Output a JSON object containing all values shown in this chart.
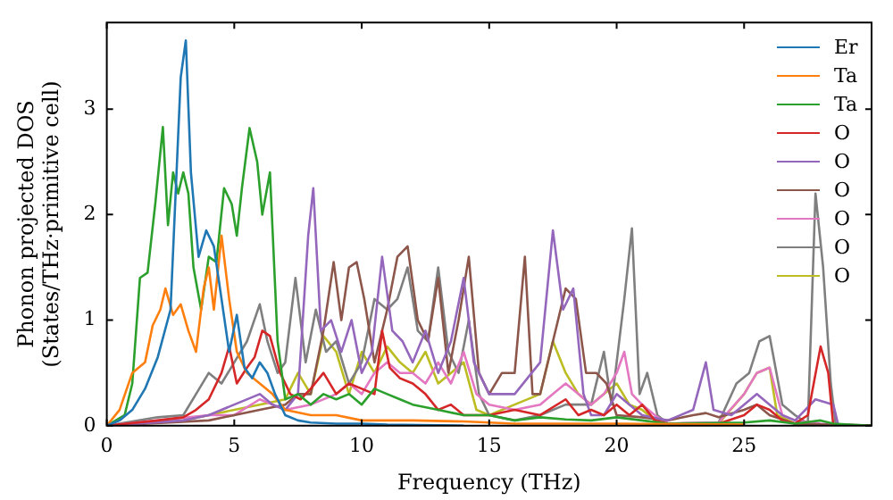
{
  "chart_data": {
    "type": "line",
    "xlabel": "Frequency (THz)",
    "ylabel": "Phonon projected DOS\n(States/THz·primitive cell)",
    "xlim": [
      0,
      30
    ],
    "ylim": [
      0,
      3.82
    ],
    "xticks": [
      0,
      5,
      10,
      15,
      20,
      25
    ],
    "yticks": [
      0,
      1,
      2,
      3
    ],
    "grid": false,
    "legend": "top right",
    "marker": "none",
    "line_style": "solid",
    "series": [
      {
        "name": "Er",
        "color": "#1f77b4",
        "x": [
          0,
          0.5,
          1,
          1.5,
          2,
          2.5,
          2.7,
          2.9,
          3.1,
          3.3,
          3.6,
          3.9,
          4.2,
          4.5,
          4.8,
          5.1,
          5.4,
          5.7,
          6.0,
          6.3,
          6.6,
          7,
          7.5,
          8,
          9,
          10,
          11,
          14
        ],
        "values": [
          0,
          0.05,
          0.15,
          0.35,
          0.65,
          1.1,
          2.2,
          3.3,
          3.65,
          2.4,
          1.6,
          1.85,
          1.7,
          1.2,
          0.7,
          1.05,
          0.55,
          0.45,
          0.6,
          0.5,
          0.3,
          0.1,
          0.05,
          0.03,
          0.02,
          0.02,
          0.01,
          0
        ]
      },
      {
        "name": "Ta",
        "color": "#ff7f0e",
        "x": [
          0,
          0.5,
          1,
          1.5,
          1.8,
          2.1,
          2.3,
          2.6,
          2.9,
          3.2,
          3.5,
          3.8,
          4.0,
          4.2,
          4.5,
          4.8,
          5.1,
          5.5,
          6,
          6.5,
          7,
          8,
          9,
          10,
          11,
          12,
          14,
          16,
          20,
          25
        ],
        "values": [
          0,
          0.15,
          0.5,
          0.6,
          0.95,
          1.1,
          1.3,
          1.05,
          1.15,
          0.9,
          0.7,
          1.3,
          1.5,
          1.1,
          1.8,
          1.2,
          0.7,
          0.5,
          0.4,
          0.3,
          0.15,
          0.1,
          0.1,
          0.05,
          0.05,
          0.05,
          0.04,
          0.02,
          0.02,
          0.01
        ]
      },
      {
        "name": "Ta",
        "color": "#2ca02c",
        "x": [
          0,
          0.7,
          1,
          1.3,
          1.6,
          1.9,
          2.2,
          2.4,
          2.6,
          2.8,
          3.0,
          3.2,
          3.4,
          3.7,
          4.0,
          4.3,
          4.6,
          4.9,
          5.1,
          5.3,
          5.6,
          5.9,
          6.1,
          6.4,
          6.7,
          7,
          7.5,
          8,
          8.5,
          9,
          9.5,
          10,
          10.5,
          11,
          11.5,
          12,
          13,
          14,
          15,
          16,
          17,
          18,
          19,
          20,
          21,
          22,
          25,
          26,
          27,
          28,
          28.5,
          30
        ],
        "values": [
          0,
          0.1,
          0.4,
          1.4,
          1.45,
          2.1,
          2.83,
          1.9,
          2.4,
          2.2,
          2.4,
          2.2,
          1.5,
          1.1,
          1.6,
          1.55,
          2.25,
          2.1,
          1.8,
          2.25,
          2.82,
          2.5,
          2.0,
          2.4,
          0.8,
          0.25,
          0.3,
          0.2,
          0.3,
          0.25,
          0.3,
          0.2,
          0.35,
          0.3,
          0.25,
          0.2,
          0.15,
          0.1,
          0.1,
          0.05,
          0.08,
          0.06,
          0.05,
          0.08,
          0.05,
          0.02,
          0.03,
          0.05,
          0.02,
          0.05,
          0.02,
          0
        ]
      },
      {
        "name": "O",
        "color": "#d62728",
        "x": [
          0,
          2,
          3,
          3.5,
          4,
          4.5,
          4.8,
          5.1,
          5.5,
          5.8,
          6.1,
          6.4,
          6.8,
          7.2,
          7.6,
          8,
          8.5,
          9,
          9.5,
          10,
          10.5,
          10.8,
          11.1,
          11.5,
          12,
          12.5,
          13,
          13.5,
          14,
          15,
          16,
          17,
          18,
          18.5,
          19,
          19.5,
          20,
          20.5,
          21,
          21.5,
          22,
          24,
          25,
          25.5,
          26,
          26.5,
          27,
          27.5,
          28,
          28.3,
          28.5,
          30
        ],
        "values": [
          0,
          0.05,
          0.08,
          0.15,
          0.25,
          0.5,
          0.75,
          0.4,
          0.55,
          0.65,
          0.9,
          0.85,
          0.5,
          0.3,
          0.25,
          0.35,
          0.5,
          0.3,
          0.4,
          0.35,
          0.3,
          0.9,
          0.55,
          0.45,
          0.4,
          0.3,
          0.15,
          0.2,
          0.1,
          0.1,
          0.15,
          0.1,
          0.25,
          0.1,
          0.15,
          0.1,
          0.2,
          0.1,
          0.2,
          0.05,
          0.02,
          0.02,
          0.1,
          0.2,
          0.15,
          0.05,
          0.02,
          0.1,
          0.75,
          0.5,
          0,
          0
        ]
      },
      {
        "name": "O",
        "color": "#9467bd",
        "x": [
          0,
          3,
          4,
          5,
          6,
          6.5,
          7,
          7.5,
          7.9,
          8.1,
          8.4,
          8.8,
          9.2,
          9.6,
          10,
          10.4,
          10.8,
          11.2,
          11.6,
          12,
          12.5,
          13,
          13.5,
          14,
          14.4,
          15,
          16,
          17,
          17.5,
          17.9,
          18.3,
          18.7,
          19,
          19.5,
          20,
          20.5,
          21,
          22,
          23,
          23.5,
          23.8,
          24.5,
          25,
          25.5,
          26,
          26.5,
          27,
          27.8,
          28.5,
          28.7,
          30
        ],
        "values": [
          0,
          0.05,
          0.1,
          0.2,
          0.3,
          0.2,
          0.15,
          0.3,
          1.8,
          2.25,
          0.9,
          1.0,
          0.7,
          1.0,
          0.5,
          0.7,
          1.6,
          0.9,
          0.8,
          0.6,
          0.9,
          0.5,
          0.8,
          1.4,
          0.6,
          0.3,
          0.3,
          0.6,
          1.85,
          1.1,
          1.3,
          0.3,
          0.1,
          0.1,
          0.3,
          0.2,
          0.1,
          0.05,
          0.15,
          0.6,
          0.15,
          0.1,
          0.2,
          0.3,
          0.2,
          0.1,
          0.05,
          0.25,
          0.2,
          0,
          0
        ]
      },
      {
        "name": "O",
        "color": "#8c564b",
        "x": [
          0,
          4,
          5,
          6,
          7,
          7.5,
          8,
          8.5,
          8.9,
          9.2,
          9.5,
          9.8,
          10.1,
          10.5,
          11,
          11.4,
          11.8,
          12.2,
          12.6,
          13,
          13.4,
          13.8,
          14.2,
          14.6,
          15,
          15.5,
          16,
          16.4,
          16.7,
          17,
          17.5,
          18,
          18.4,
          18.8,
          19.2,
          19.6,
          20,
          21,
          22,
          23,
          23.5,
          24,
          25,
          25.5,
          26,
          27,
          30
        ],
        "values": [
          0,
          0.05,
          0.1,
          0.15,
          0.2,
          0.3,
          0.3,
          0.9,
          1.55,
          1.0,
          1.5,
          1.55,
          1.2,
          0.6,
          1.1,
          1.6,
          1.7,
          1.0,
          0.8,
          1.4,
          0.5,
          1.0,
          1.6,
          0.5,
          0.3,
          0.5,
          0.5,
          1.6,
          0.3,
          0.3,
          0.8,
          1.3,
          1.2,
          0.5,
          0.5,
          0.4,
          0.1,
          0.08,
          0.05,
          0.1,
          0.12,
          0.08,
          0.15,
          0.2,
          0.1,
          0.02,
          0
        ]
      },
      {
        "name": "O",
        "color": "#e377c2",
        "x": [
          0,
          2,
          4,
          5,
          6,
          7,
          8,
          9,
          9.5,
          10,
          10.5,
          11,
          11.5,
          12,
          12.5,
          13,
          13.5,
          14,
          14.5,
          15,
          16,
          17,
          17.5,
          18,
          18.5,
          19,
          19.5,
          20,
          20.3,
          20.6,
          21,
          21.5,
          22,
          24,
          25,
          25.5,
          26,
          26.5,
          27,
          28,
          30
        ],
        "values": [
          0,
          0.05,
          0.1,
          0.1,
          0.25,
          0.15,
          0.2,
          0.3,
          0.4,
          0.3,
          0.5,
          0.6,
          0.5,
          0.5,
          0.4,
          0.6,
          0.4,
          0.7,
          0.3,
          0.2,
          0.15,
          0.2,
          0.3,
          0.4,
          0.3,
          0.2,
          0.3,
          0.5,
          0.7,
          0.3,
          0.2,
          0.1,
          0.02,
          0.03,
          0.3,
          0.5,
          0.55,
          0.1,
          0.05,
          0.02,
          0
        ]
      },
      {
        "name": "O",
        "color": "#7f7f7f",
        "x": [
          0,
          2,
          3,
          3.5,
          4,
          4.5,
          5,
          5.5,
          6,
          6.3,
          6.7,
          7,
          7.4,
          7.8,
          8.2,
          8.6,
          9,
          9.5,
          10,
          10.5,
          11,
          11.4,
          11.8,
          12.2,
          12.6,
          13,
          13.4,
          13.8,
          14.2,
          14.6,
          15,
          16,
          17,
          18,
          19,
          19.5,
          19.8,
          20.3,
          20.6,
          20.9,
          21.2,
          21.6,
          22,
          24,
          24.7,
          25.2,
          25.6,
          26,
          26.5,
          27,
          27.5,
          27.8,
          28.1,
          28.4,
          28.6,
          30
        ],
        "values": [
          0,
          0.08,
          0.1,
          0.3,
          0.5,
          0.4,
          0.6,
          0.8,
          1.15,
          0.8,
          0.5,
          0.6,
          1.4,
          0.6,
          1.1,
          0.7,
          0.8,
          0.4,
          0.6,
          1.2,
          1.1,
          1.2,
          1.5,
          0.9,
          0.8,
          1.5,
          0.7,
          0.5,
          1.0,
          0.3,
          0.1,
          0.05,
          0.1,
          0.2,
          0.2,
          0.7,
          0.2,
          1.2,
          1.87,
          0.3,
          0.5,
          0.1,
          0.02,
          0.03,
          0.4,
          0.5,
          0.8,
          0.85,
          0.2,
          0.1,
          0.02,
          2.2,
          1.5,
          0.4,
          0,
          0
        ]
      },
      {
        "name": "O",
        "color": "#bcbd22",
        "x": [
          0,
          3,
          4,
          5,
          6,
          7,
          7.5,
          8,
          8.5,
          9,
          9.5,
          10,
          10.5,
          11,
          11.5,
          12,
          12.5,
          13,
          13.5,
          14,
          14.5,
          15,
          16,
          17,
          17.5,
          18,
          18.5,
          19,
          19.5,
          20,
          20.5,
          21,
          21.5,
          22,
          24,
          25,
          25.5,
          26,
          26.3,
          27,
          30
        ],
        "values": [
          0,
          0.05,
          0.1,
          0.15,
          0.2,
          0.25,
          0.5,
          0.3,
          0.85,
          0.7,
          0.3,
          0.7,
          0.5,
          0.75,
          0.6,
          0.5,
          0.7,
          0.4,
          0.5,
          0.6,
          0.15,
          0.1,
          0.2,
          0.3,
          0.8,
          0.5,
          0.3,
          0.2,
          0.3,
          0.4,
          0.2,
          0.15,
          0.05,
          0.02,
          0.02,
          0.3,
          0.5,
          0.55,
          0.1,
          0.02,
          0
        ]
      }
    ]
  }
}
